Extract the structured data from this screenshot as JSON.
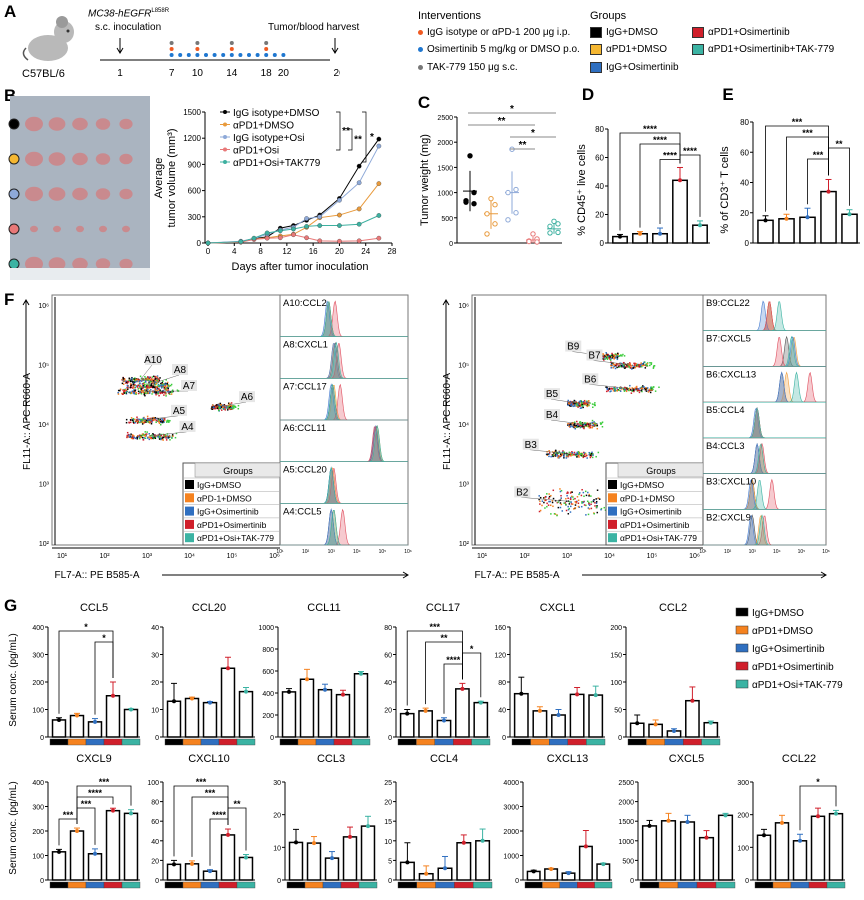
{
  "colors": {
    "IgG+DMSO": "#000000",
    "aPD1+DMSO": "#f5821f",
    "IgG+Osimertinib": "#2f6fc0",
    "aPD1+Osimertinib": "#d01f2b",
    "aPD1+Osi+TAK-779": "#3bb3a3"
  },
  "panelA": {
    "label": "A",
    "mouse_strain": "C57BL/6",
    "cell_line": "MC38-hEGFR",
    "cell_line_superscript": "L858R",
    "inoculation": "s.c. inoculation",
    "harvest": "Tumor/blood harvest",
    "timeline_days": [
      "1",
      "7",
      "10",
      "14",
      "18",
      "20",
      "26 days"
    ],
    "interventions_title": "Interventions",
    "interventions": [
      {
        "text": "IgG isotype or αPD-1 200 μg i.p.",
        "color": "#f05a22"
      },
      {
        "text": "Osimertinib 5 mg/kg or DMSO p.o.",
        "color": "#1f77d0"
      },
      {
        "text": "TAK-779 150 μg s.c.",
        "color": "#777777"
      }
    ],
    "groups_title": "Groups",
    "groups": [
      {
        "text": "IgG+DMSO",
        "color": "#000000"
      },
      {
        "text": "αPD1+DMSO",
        "color": "#f5b731"
      },
      {
        "text": "IgG+Osimertinib",
        "color": "#2f6fc0"
      },
      {
        "text": "αPD1+Osimertinib",
        "color": "#d01f2b"
      },
      {
        "text": "αPD1+Osimertinib+TAK-779",
        "color": "#3bb3a3"
      }
    ]
  },
  "panelB": {
    "label": "B",
    "photo_row_colors": [
      "#000000",
      "#f5b731",
      "#8ea9d8",
      "#e87878",
      "#3bb3a3"
    ]
  },
  "chart_data": [
    {
      "id": "B",
      "type": "line",
      "xlabel": "Days after tumor inoculation",
      "ylabel": "Average tumor volume (mm³)",
      "ylabel_lines": [
        "Average",
        "tumor volume (mm³)"
      ],
      "xlim": [
        0,
        28
      ],
      "ylim": [
        0,
        1500
      ],
      "xticks": [
        "0",
        "4",
        "8",
        "12",
        "16",
        "20",
        "24",
        "28"
      ],
      "yticks": [
        "0",
        "300",
        "600",
        "900",
        "1200",
        "1500"
      ],
      "x": [
        0,
        5,
        7,
        9,
        11,
        13,
        15,
        17,
        20,
        23,
        26
      ],
      "series": [
        {
          "name": "IgG isotype+DMSO",
          "color": "#000000",
          "values": [
            0,
            15,
            50,
            70,
            170,
            200,
            260,
            320,
            510,
            880,
            1190
          ]
        },
        {
          "name": "αPD1+DMSO",
          "color": "#e89a3c",
          "values": [
            0,
            10,
            45,
            60,
            80,
            100,
            180,
            290,
            320,
            390,
            680
          ]
        },
        {
          "name": "IgG isotype+Osi",
          "color": "#8ea9d8",
          "values": [
            0,
            20,
            50,
            100,
            150,
            180,
            280,
            300,
            490,
            690,
            1110
          ]
        },
        {
          "name": "αPD1+Osi",
          "color": "#e87878",
          "values": [
            0,
            10,
            40,
            55,
            60,
            95,
            60,
            25,
            20,
            25,
            55
          ]
        },
        {
          "name": "αPD1+Osi+TAK779",
          "color": "#3db0a0",
          "values": [
            0,
            15,
            55,
            115,
            140,
            160,
            190,
            200,
            200,
            215,
            315
          ]
        }
      ],
      "significance": [
        "**",
        "**",
        "*"
      ],
      "legend": "top-left"
    },
    {
      "id": "C",
      "label": "C",
      "type": "scatter",
      "ylabel": "Tumor weight (mg)",
      "ylim": [
        0,
        2500
      ],
      "yticks": [
        "0",
        "500",
        "1000",
        "1500",
        "2000",
        "2500"
      ],
      "groups": [
        {
          "mean": 1030,
          "sd": 400,
          "points": [
            1730,
            1000,
            840,
            780,
            810
          ],
          "color": "#000000"
        },
        {
          "mean": 580,
          "sd": 300,
          "points": [
            880,
            760,
            580,
            380,
            180
          ],
          "color": "#e89a3c"
        },
        {
          "mean": 1000,
          "sd": 420,
          "points": [
            1860,
            1060,
            1000,
            600,
            460
          ],
          "color": "#8ea9d8"
        },
        {
          "mean": 60,
          "sd": 60,
          "points": [
            180,
            80,
            40,
            20,
            30
          ],
          "color": "#e87878"
        },
        {
          "mean": 280,
          "sd": 100,
          "points": [
            430,
            380,
            330,
            210,
            200
          ],
          "color": "#3db0a0"
        }
      ],
      "significance": [
        {
          "a": 0,
          "b": 4,
          "stars": "*"
        },
        {
          "a": 0,
          "b": 3,
          "stars": "**"
        },
        {
          "a": 2,
          "b": 4,
          "stars": "*"
        },
        {
          "a": 2,
          "b": 3,
          "stars": "**"
        }
      ]
    },
    {
      "id": "D",
      "label": "D",
      "type": "bar",
      "ylabel": "% CD45⁺ live cells",
      "ylim": [
        0,
        80
      ],
      "yticks": [
        "0",
        "20",
        "40",
        "60",
        "80"
      ],
      "values": [
        4.5,
        6.5,
        6.5,
        44,
        12.5
      ],
      "err": [
        1.5,
        1.5,
        4,
        9,
        3
      ],
      "significance": [
        {
          "a": 0,
          "b": 3,
          "stars": "****"
        },
        {
          "a": 1,
          "b": 3,
          "stars": "****"
        },
        {
          "a": 2,
          "b": 3,
          "stars": "****"
        },
        {
          "a": 3,
          "b": 4,
          "stars": "****"
        }
      ]
    },
    {
      "id": "E",
      "label": "E",
      "type": "bar",
      "ylabel": "% of CD3⁺ T cells",
      "ylim": [
        0,
        80
      ],
      "yticks": [
        "0",
        "20",
        "40",
        "60",
        "80"
      ],
      "values": [
        15,
        16,
        17,
        34,
        19
      ],
      "err": [
        3,
        3,
        6,
        8,
        3
      ],
      "significance": [
        {
          "a": 0,
          "b": 3,
          "stars": "***"
        },
        {
          "a": 1,
          "b": 3,
          "stars": "***"
        },
        {
          "a": 2,
          "b": 3,
          "stars": "***"
        },
        {
          "a": 3,
          "b": 4,
          "stars": "**"
        }
      ]
    },
    {
      "id": "G",
      "label": "G",
      "type": "bar",
      "ylabel": "Serum conc. (pg/mL)",
      "legend": [
        "IgG+DMSO",
        "αPD1+DMSO",
        "IgG+Osimertinib",
        "αPD1+Osimertinib",
        "αPD1+Osi+TAK-779"
      ],
      "panels": [
        {
          "title": "CCL5",
          "ylim": [
            0,
            400
          ],
          "yticks": [
            "0",
            "100",
            "200",
            "300",
            "400"
          ],
          "values": [
            62,
            78,
            55,
            150,
            100
          ],
          "err": [
            8,
            8,
            12,
            50,
            3
          ],
          "significance": [
            {
              "a": 0,
              "b": 3,
              "stars": "*"
            },
            {
              "a": 2,
              "b": 3,
              "stars": "*"
            }
          ]
        },
        {
          "title": "CCL20",
          "ylim": [
            0,
            40
          ],
          "yticks": [
            "0",
            "10",
            "20",
            "30",
            "40"
          ],
          "values": [
            13,
            14,
            12.5,
            25,
            16.5
          ],
          "err": [
            6.5,
            0.5,
            0.4,
            4,
            1.5
          ],
          "significance": []
        },
        {
          "title": "CCL11",
          "ylim": [
            0,
            1000
          ],
          "yticks": [
            "0",
            "200",
            "400",
            "600",
            "800",
            "1000"
          ],
          "values": [
            410,
            525,
            430,
            385,
            575
          ],
          "err": [
            30,
            90,
            50,
            40,
            20
          ],
          "significance": []
        },
        {
          "title": "CCL17",
          "ylim": [
            0,
            80
          ],
          "yticks": [
            "0",
            "20",
            "40",
            "60",
            "80"
          ],
          "values": [
            17,
            19,
            12,
            35,
            25
          ],
          "err": [
            3,
            2,
            2,
            4,
            1
          ],
          "significance": [
            {
              "a": 0,
              "b": 3,
              "stars": "***"
            },
            {
              "a": 1,
              "b": 3,
              "stars": "**"
            },
            {
              "a": 2,
              "b": 3,
              "stars": "****"
            },
            {
              "a": 3,
              "b": 4,
              "stars": "*"
            }
          ]
        },
        {
          "title": "CXCL1",
          "ylim": [
            0,
            160
          ],
          "yticks": [
            "0",
            "40",
            "80",
            "120",
            "160"
          ],
          "values": [
            63,
            38,
            32,
            62,
            61
          ],
          "err": [
            24,
            6,
            8,
            10,
            13
          ],
          "significance": []
        },
        {
          "title": "CCL2",
          "ylim": [
            0,
            200
          ],
          "yticks": [
            "0",
            "50",
            "100",
            "150",
            "200"
          ],
          "values": [
            25,
            23,
            11,
            66,
            26
          ],
          "err": [
            15,
            8,
            4,
            25,
            3
          ],
          "significance": []
        },
        {
          "title": "CXCL9",
          "ylim": [
            0,
            400
          ],
          "yticks": [
            "0",
            "100",
            "200",
            "300",
            "400"
          ],
          "values": [
            115,
            200,
            107,
            283,
            272
          ],
          "err": [
            10,
            12,
            20,
            10,
            15
          ],
          "significance": [
            {
              "a": 0,
              "b": 1,
              "stars": "***"
            },
            {
              "a": 1,
              "b": 2,
              "stars": "***"
            },
            {
              "a": 1,
              "b": 3,
              "stars": "****"
            },
            {
              "a": 1,
              "b": 4,
              "stars": "***"
            }
          ]
        },
        {
          "title": "CXCL10",
          "ylim": [
            0,
            100
          ],
          "yticks": [
            "0",
            "20",
            "40",
            "60",
            "80",
            "100"
          ],
          "values": [
            16,
            16.5,
            9,
            46,
            23
          ],
          "err": [
            4,
            3,
            1.5,
            6,
            3
          ],
          "significance": [
            {
              "a": 0,
              "b": 3,
              "stars": "***"
            },
            {
              "a": 1,
              "b": 3,
              "stars": "***"
            },
            {
              "a": 2,
              "b": 3,
              "stars": "****"
            },
            {
              "a": 3,
              "b": 4,
              "stars": "**"
            }
          ]
        },
        {
          "title": "CCL3",
          "ylim": [
            0,
            30
          ],
          "yticks": [
            "0",
            "10",
            "20",
            "30"
          ],
          "values": [
            11.5,
            11.3,
            6.7,
            13.2,
            16.5
          ],
          "err": [
            4,
            2,
            2,
            3,
            3
          ],
          "significance": []
        },
        {
          "title": "CCL4",
          "ylim": [
            0,
            25
          ],
          "yticks": [
            "0",
            "5",
            "10",
            "15",
            "20",
            "25"
          ],
          "values": [
            4.5,
            1.6,
            3,
            9.5,
            10
          ],
          "err": [
            5,
            2,
            3,
            2,
            3
          ],
          "significance": []
        },
        {
          "title": "CXCL13",
          "ylim": [
            0,
            4000
          ],
          "yticks": [
            "0",
            "1000",
            "2000",
            "3000",
            "4000"
          ],
          "values": [
            350,
            450,
            280,
            1370,
            650
          ],
          "err": [
            50,
            30,
            60,
            650,
            40
          ],
          "significance": []
        },
        {
          "title": "CXCL5",
          "ylim": [
            0,
            2500
          ],
          "yticks": [
            "0",
            "500",
            "1000",
            "1500",
            "2000",
            "2500"
          ],
          "values": [
            1380,
            1510,
            1480,
            1080,
            1650
          ],
          "err": [
            140,
            190,
            170,
            180,
            50
          ],
          "significance": []
        },
        {
          "title": "CCL22",
          "ylim": [
            0,
            300
          ],
          "yticks": [
            "0",
            "100",
            "200",
            "300"
          ],
          "values": [
            137,
            175,
            120,
            195,
            203
          ],
          "err": [
            18,
            23,
            20,
            25,
            10
          ],
          "significance": [
            {
              "a": 2,
              "b": 4,
              "stars": "*"
            }
          ]
        }
      ]
    }
  ],
  "panelF": {
    "label": "F",
    "xlabel": "FL7-A:: PE B585-A",
    "ylabel": "FL11-A:: APC R660-A",
    "xticks": [
      "10¹",
      "10²",
      "10³",
      "10⁴",
      "10⁵",
      "10⁶"
    ],
    "yticks": [
      "10²",
      "10³",
      "10⁴",
      "10⁵",
      "10⁶"
    ],
    "legend_title": "Groups",
    "legend": [
      "IgG+DMSO",
      "αPD-1+DMSO",
      "IgG+Osimertinib",
      "αPD1+Osimertinib",
      "αPD1+Osi+TAK-779"
    ],
    "left": {
      "clusters": [
        {
          "name": "A10",
          "x": [
            2.4,
            3.3
          ],
          "y": 4.75
        },
        {
          "name": "A8",
          "x": [
            2.5,
            3.5
          ],
          "y": 4.65
        },
        {
          "name": "A7",
          "x": [
            2.3,
            3.6
          ],
          "y": 4.55
        },
        {
          "name": "A6",
          "x": [
            4.5,
            5.0
          ],
          "y": 4.3
        },
        {
          "name": "A5",
          "x": [
            2.5,
            3.4
          ],
          "y": 4.07
        },
        {
          "name": "A4",
          "x": [
            2.5,
            3.6
          ],
          "y": 3.8
        }
      ],
      "histograms": [
        {
          "label": "A10:CCL2",
          "peaks": [
            2.9,
            2.9,
            2.85,
            3.15,
            2.9
          ]
        },
        {
          "label": "A8:CXCL1",
          "peaks": [
            3.15,
            3.1,
            3.1,
            3.3,
            3.2
          ]
        },
        {
          "label": "A7:CCL17",
          "peaks": [
            3.05,
            3.1,
            3.0,
            3.35,
            3.05
          ]
        },
        {
          "label": "A6:CCL11",
          "peaks": [
            4.75,
            4.8,
            4.72,
            4.7,
            4.8
          ]
        },
        {
          "label": "A5:CCL20",
          "peaks": [
            3.0,
            3.05,
            3.0,
            3.1,
            3.0
          ]
        },
        {
          "label": "A4:CCL5",
          "peaks": [
            3.0,
            3.1,
            3.0,
            3.45,
            3.1
          ]
        }
      ]
    },
    "right": {
      "clusters": [
        {
          "name": "B9",
          "x": [
            3.5,
            4.2
          ],
          "y": 5.15
        },
        {
          "name": "B7",
          "x": [
            4.0,
            4.9
          ],
          "y": 5.0
        },
        {
          "name": "B6",
          "x": [
            3.9,
            5.0
          ],
          "y": 4.6
        },
        {
          "name": "B5",
          "x": [
            3.0,
            3.5
          ],
          "y": 4.35
        },
        {
          "name": "B4",
          "x": [
            3.0,
            3.7
          ],
          "y": 4.0
        },
        {
          "name": "B3",
          "x": [
            2.5,
            3.6
          ],
          "y": 3.5
        },
        {
          "name": "B2",
          "x": [
            2.3,
            3.8
          ],
          "y": 2.7
        }
      ],
      "histograms": [
        {
          "label": "B9:CCL22",
          "peaks": [
            3.7,
            3.7,
            3.45,
            3.7,
            4.1
          ]
        },
        {
          "label": "B7:CXCL5",
          "peaks": [
            4.4,
            4.7,
            4.65,
            4.1,
            4.6
          ]
        },
        {
          "label": "B6:CXCL13",
          "peaks": [
            4.2,
            4.4,
            4.2,
            5.35,
            4.8
          ]
        },
        {
          "label": "B5:CCL4",
          "peaks": [
            3.2,
            3.2,
            3.15,
            3.2,
            3.2
          ]
        },
        {
          "label": "B4:CCL3",
          "peaks": [
            3.2,
            3.35,
            3.2,
            3.4,
            3.35
          ]
        },
        {
          "label": "B3:CXCL10",
          "peaks": [
            3.0,
            3.0,
            2.95,
            3.8,
            3.3
          ]
        },
        {
          "label": "B2:CXCL9",
          "peaks": [
            3.0,
            3.35,
            2.95,
            3.5,
            3.4
          ]
        }
      ]
    }
  }
}
